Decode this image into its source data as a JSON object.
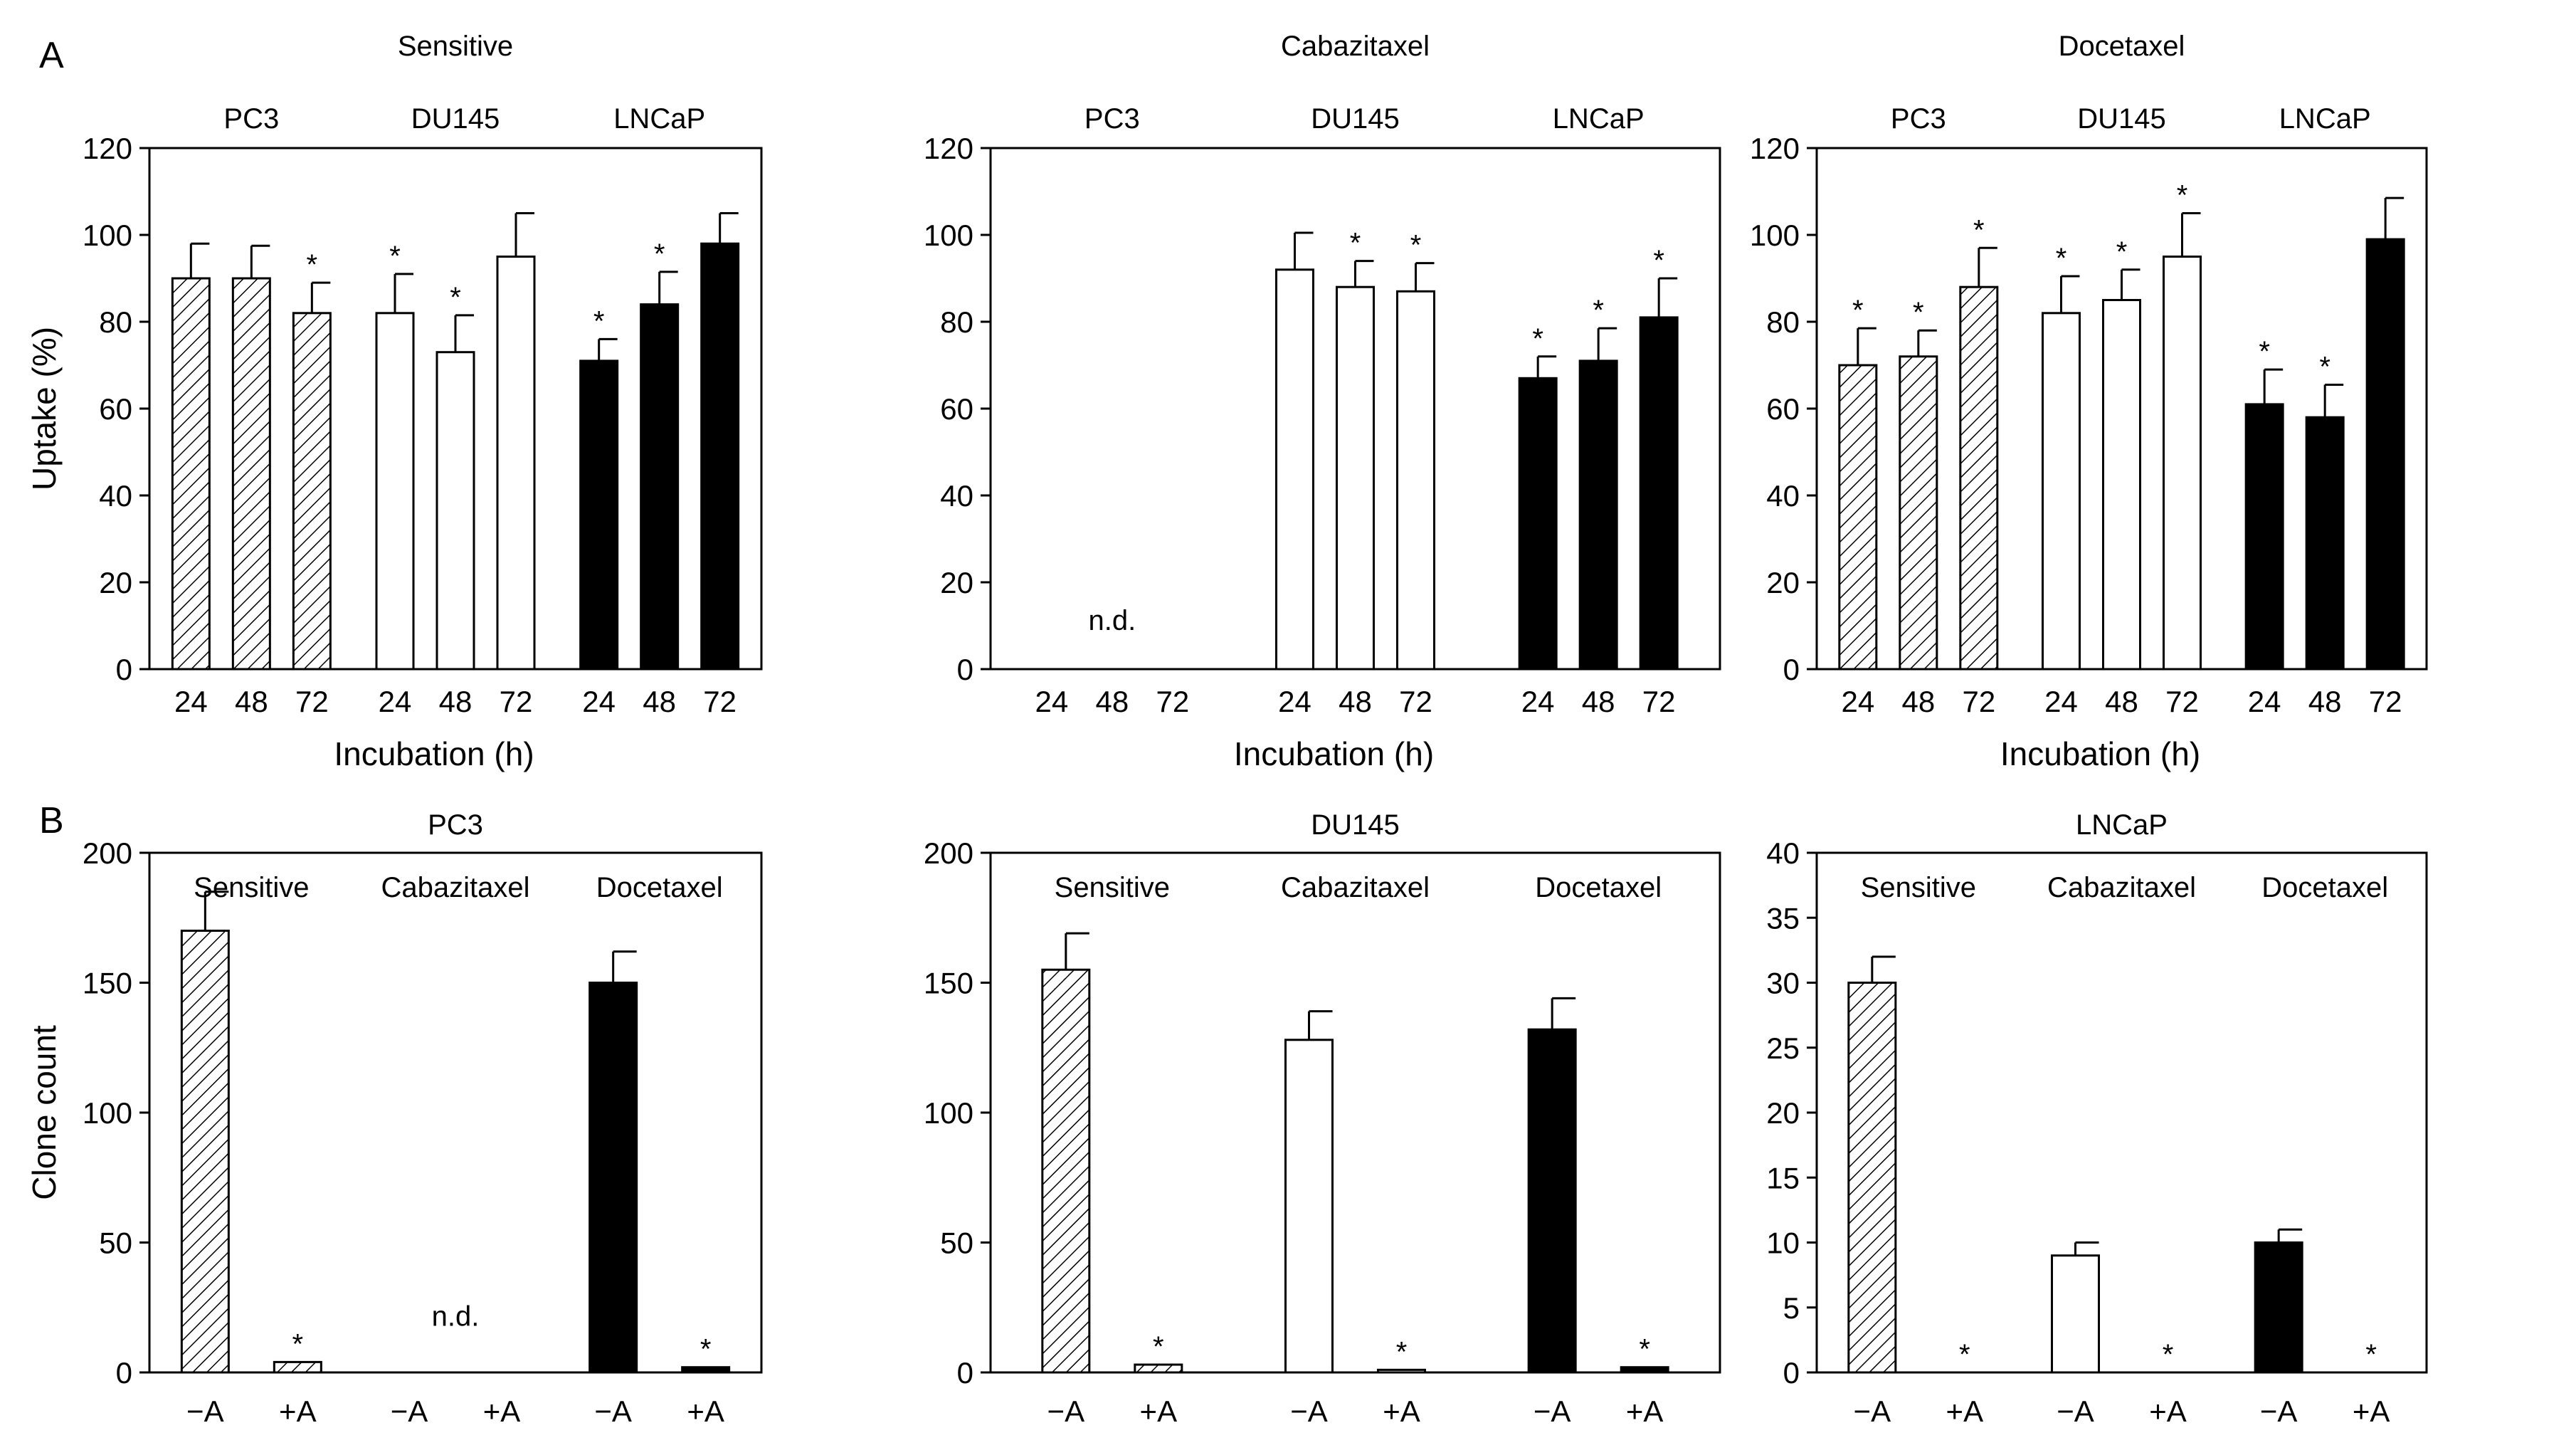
{
  "panel_labels": {
    "a": "A",
    "b": "B"
  },
  "shared": {
    "row_a_ylabel": "Uptake (%)",
    "row_a_xlabel": "Incubation (h)",
    "row_b_ylabel": "Clone count",
    "not_determined": "n.d.",
    "significance_marker": "*",
    "colors": {
      "hatched": "#ffffff",
      "open": "#ffffff",
      "solid": "#000000",
      "axis": "#000000"
    }
  },
  "chart_data": [
    {
      "id": "A1",
      "row": "A",
      "type": "bar",
      "title": "Sensitive",
      "ylim": [
        0,
        120
      ],
      "yticks": [
        "0",
        "20",
        "40",
        "60",
        "80",
        "100",
        "120"
      ],
      "groups": [
        {
          "label": "PC3",
          "fill": "hatched",
          "categories": [
            "24",
            "48",
            "72"
          ],
          "values": [
            90,
            90,
            82
          ],
          "errors": [
            8,
            7.5,
            7
          ],
          "significant": [
            false,
            false,
            true
          ]
        },
        {
          "label": "DU145",
          "fill": "open",
          "categories": [
            "24",
            "48",
            "72"
          ],
          "values": [
            82,
            73,
            95
          ],
          "errors": [
            9,
            8.5,
            10
          ],
          "significant": [
            true,
            true,
            false
          ]
        },
        {
          "label": "LNCaP",
          "fill": "solid",
          "categories": [
            "24",
            "48",
            "72"
          ],
          "values": [
            71,
            84,
            98
          ],
          "errors": [
            5,
            7.5,
            7
          ],
          "significant": [
            true,
            true,
            false
          ]
        }
      ]
    },
    {
      "id": "A2",
      "row": "A",
      "type": "bar",
      "title": "Cabazitaxel",
      "ylim": [
        0,
        120
      ],
      "yticks": [
        "0",
        "20",
        "40",
        "60",
        "80",
        "100",
        "120"
      ],
      "groups": [
        {
          "label": "PC3",
          "fill": "hatched",
          "categories": [
            "24",
            "48",
            "72"
          ],
          "values": [
            null,
            null,
            null
          ],
          "errors": [
            null,
            null,
            null
          ],
          "significant": [
            false,
            false,
            false
          ],
          "not_determined": true
        },
        {
          "label": "DU145",
          "fill": "open",
          "categories": [
            "24",
            "48",
            "72"
          ],
          "values": [
            92,
            88,
            87
          ],
          "errors": [
            8.5,
            6,
            6.5
          ],
          "significant": [
            false,
            true,
            true
          ]
        },
        {
          "label": "LNCaP",
          "fill": "solid",
          "categories": [
            "24",
            "48",
            "72"
          ],
          "values": [
            67,
            71,
            81
          ],
          "errors": [
            5,
            7.5,
            9
          ],
          "significant": [
            true,
            true,
            true
          ]
        }
      ]
    },
    {
      "id": "A3",
      "row": "A",
      "type": "bar",
      "title": "Docetaxel",
      "ylim": [
        0,
        120
      ],
      "yticks": [
        "0",
        "20",
        "40",
        "60",
        "80",
        "100",
        "120"
      ],
      "groups": [
        {
          "label": "PC3",
          "fill": "hatched",
          "categories": [
            "24",
            "48",
            "72"
          ],
          "values": [
            70,
            72,
            88
          ],
          "errors": [
            8.5,
            6,
            9
          ],
          "significant": [
            true,
            true,
            true
          ]
        },
        {
          "label": "DU145",
          "fill": "open",
          "categories": [
            "24",
            "48",
            "72"
          ],
          "values": [
            82,
            85,
            95
          ],
          "errors": [
            8.5,
            7,
            10
          ],
          "significant": [
            true,
            true,
            true
          ]
        },
        {
          "label": "LNCaP",
          "fill": "solid",
          "categories": [
            "24",
            "48",
            "72"
          ],
          "values": [
            61,
            58,
            99
          ],
          "errors": [
            8,
            7.5,
            9.5
          ],
          "significant": [
            true,
            true,
            false
          ]
        }
      ]
    },
    {
      "id": "B1",
      "row": "B",
      "type": "bar",
      "title": "PC3",
      "ylim": [
        0,
        200
      ],
      "yticks": [
        "0",
        "50",
        "100",
        "150",
        "200"
      ],
      "groups": [
        {
          "label": "Sensitive",
          "fill": "hatched",
          "categories": [
            "−A",
            "+A"
          ],
          "values": [
            170,
            4
          ],
          "errors": [
            15,
            0
          ],
          "significant": [
            false,
            true
          ]
        },
        {
          "label": "Cabazitaxel",
          "fill": "open",
          "categories": [
            "−A",
            "+A"
          ],
          "values": [
            null,
            null
          ],
          "errors": [
            null,
            null
          ],
          "significant": [
            false,
            false
          ],
          "not_determined": true
        },
        {
          "label": "Docetaxel",
          "fill": "solid",
          "categories": [
            "−A",
            "+A"
          ],
          "values": [
            150,
            2
          ],
          "errors": [
            12,
            0
          ],
          "significant": [
            false,
            true
          ]
        }
      ]
    },
    {
      "id": "B2",
      "row": "B",
      "type": "bar",
      "title": "DU145",
      "ylim": [
        0,
        200
      ],
      "yticks": [
        "0",
        "50",
        "100",
        "150",
        "200"
      ],
      "groups": [
        {
          "label": "Sensitive",
          "fill": "hatched",
          "categories": [
            "−A",
            "+A"
          ],
          "values": [
            155,
            3
          ],
          "errors": [
            14,
            0
          ],
          "significant": [
            false,
            true
          ]
        },
        {
          "label": "Cabazitaxel",
          "fill": "open",
          "categories": [
            "−A",
            "+A"
          ],
          "values": [
            128,
            1
          ],
          "errors": [
            11,
            0
          ],
          "significant": [
            false,
            true
          ]
        },
        {
          "label": "Docetaxel",
          "fill": "solid",
          "categories": [
            "−A",
            "+A"
          ],
          "values": [
            132,
            2
          ],
          "errors": [
            12,
            0
          ],
          "significant": [
            false,
            true
          ]
        }
      ]
    },
    {
      "id": "B3",
      "row": "B",
      "type": "bar",
      "title": "LNCaP",
      "ylim": [
        0,
        40
      ],
      "yticks": [
        "0",
        "5",
        "10",
        "15",
        "20",
        "25",
        "30",
        "35",
        "40"
      ],
      "groups": [
        {
          "label": "Sensitive",
          "fill": "hatched",
          "categories": [
            "−A",
            "+A"
          ],
          "values": [
            30,
            0
          ],
          "errors": [
            2,
            0
          ],
          "significant": [
            false,
            true
          ]
        },
        {
          "label": "Cabazitaxel",
          "fill": "open",
          "categories": [
            "−A",
            "+A"
          ],
          "values": [
            9,
            0
          ],
          "errors": [
            1,
            0
          ],
          "significant": [
            false,
            true
          ]
        },
        {
          "label": "Docetaxel",
          "fill": "solid",
          "categories": [
            "−A",
            "+A"
          ],
          "values": [
            10,
            0
          ],
          "errors": [
            1,
            0
          ],
          "significant": [
            false,
            true
          ]
        }
      ]
    }
  ]
}
